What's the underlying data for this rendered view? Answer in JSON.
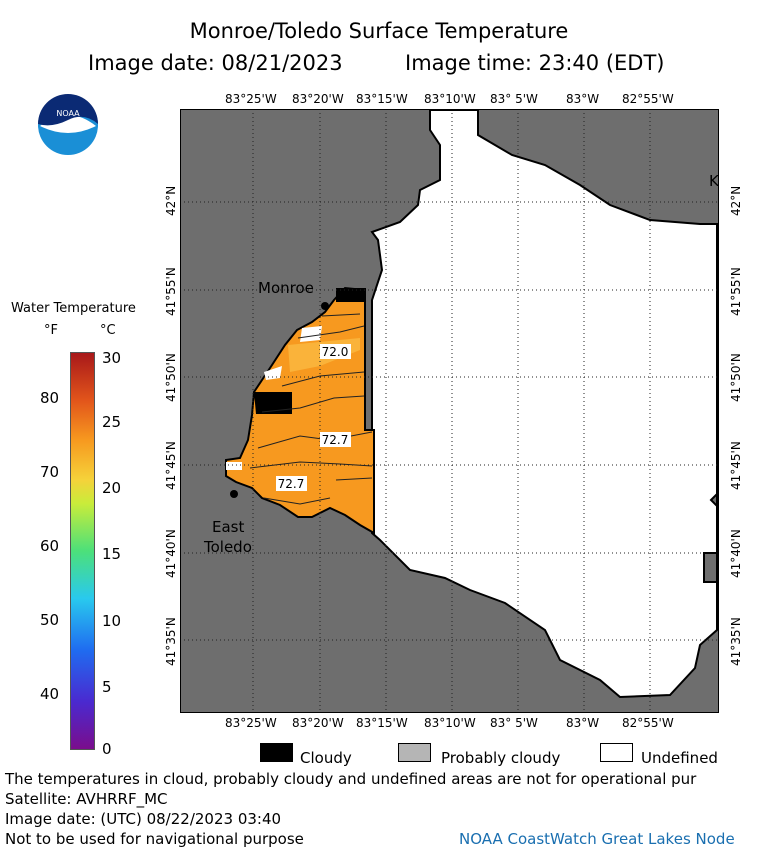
{
  "header": {
    "title": "Monroe/Toledo Surface Temperature",
    "date_label": "Image date: 08/21/2023",
    "time_label": "Image time: 23:40 (EDT)"
  },
  "logo": {
    "text": "NOAA"
  },
  "scale": {
    "title": "Water Temperature",
    "unit_f": "°F",
    "unit_c": "°C",
    "f_ticks": [
      "80",
      "70",
      "60",
      "50",
      "40"
    ],
    "c_ticks": [
      "30",
      "25",
      "20",
      "15",
      "10",
      "5",
      "0"
    ],
    "c_range": [
      0,
      30
    ]
  },
  "axes": {
    "lon_labels": [
      "83°25'W",
      "83°20'W",
      "83°15'W",
      "83°10'W",
      "83° 5'W",
      "83°W",
      "82°55'W"
    ],
    "lat_labels": [
      "42°N",
      "41°55'N",
      "41°50'N",
      "41°45'N",
      "41°40'N",
      "41°35'N"
    ]
  },
  "map": {
    "places": [
      "Monroe",
      "East Toledo"
    ],
    "place_lines": {
      "east_toledo": [
        "East",
        "Toledo"
      ]
    },
    "edge_label": "K",
    "contour_labels": [
      "72.0",
      "72.7",
      "72.7"
    ],
    "colors": {
      "land": "#6e6e6e",
      "water_warm": "#f7991f",
      "water_light": "#fab33a",
      "cloud": "#000000",
      "undefined": "#ffffff"
    }
  },
  "legend": {
    "cloudy": "Cloudy",
    "probably_cloudy": "Probably cloudy",
    "undefined": "Undefined"
  },
  "footer": {
    "note": "The temperatures in cloud, probably cloudy and undefined areas are not for operational pur",
    "satellite": "Satellite: AVHRRF_MC",
    "utc_date": "Image date: (UTC) 08/22/2023  03:40",
    "nav_warning": "Not to be used for navigational purpose",
    "credit": "NOAA CoastWatch Great Lakes Node"
  }
}
